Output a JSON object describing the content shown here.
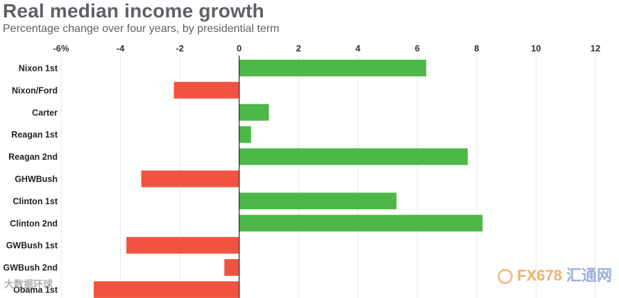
{
  "chart_data": {
    "type": "bar",
    "orientation": "horizontal",
    "title": "Real median income growth",
    "subtitle": "Percentage change over four years, by presidential term",
    "categories": [
      "Nixon 1st",
      "Nixon/Ford",
      "Carter",
      "Reagan 1st",
      "Reagan 2nd",
      "GHWBush",
      "Clinton 1st",
      "Clinton 2nd",
      "GWBush 1st",
      "GWBush 2nd",
      "Obama 1st"
    ],
    "values": [
      6.3,
      -2.2,
      1.0,
      0.4,
      7.7,
      -3.3,
      5.3,
      8.2,
      -3.8,
      -0.5,
      -4.9
    ],
    "xlim": [
      -6,
      12
    ],
    "xticks": [
      -6,
      -4,
      -2,
      0,
      2,
      4,
      6,
      8,
      10,
      12
    ],
    "xtick_labels": [
      "-6%",
      "-4",
      "-2",
      "0",
      "2",
      "4",
      "6",
      "8",
      "10",
      "12"
    ],
    "grid": true,
    "colors": {
      "positive": "#4db848",
      "negative": "#f05440",
      "grid": "#ebe6ee",
      "zero_line": "#222222"
    }
  },
  "watermarks": {
    "right_brand": "FX678",
    "right_cn": "汇通网",
    "left_text": "大数据环球"
  }
}
